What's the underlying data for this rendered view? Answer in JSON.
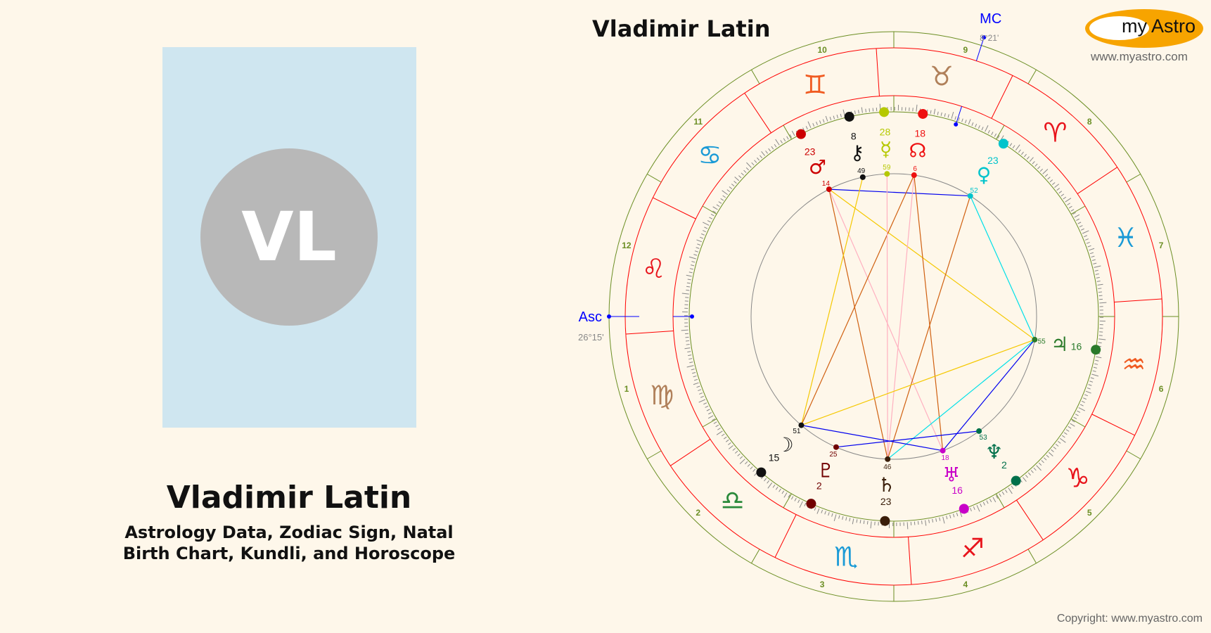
{
  "profile": {
    "initials": "VL",
    "name": "Vladimir Latin",
    "subtitle_line1": "Astrology Data, Zodiac Sign, Natal",
    "subtitle_line2": "Birth Chart, Kundli, and Horoscope"
  },
  "chart": {
    "title": "Vladimir Latin",
    "asc": {
      "label": "Asc",
      "position": "26°15'",
      "sign": "Leo",
      "color": "#0000ff"
    },
    "mc": {
      "label": "MC",
      "position": "8°21'",
      "sign": "Taurus",
      "color": "#0000ff"
    },
    "house_numbers": [
      "1",
      "2",
      "3",
      "4",
      "5",
      "6",
      "7",
      "8",
      "9",
      "10",
      "11",
      "12"
    ],
    "signs": [
      {
        "name": "Aries",
        "glyph": "♈︎",
        "color": "#e8141c"
      },
      {
        "name": "Taurus",
        "glyph": "♉︎",
        "color": "#b0805a"
      },
      {
        "name": "Gemini",
        "glyph": "♊︎",
        "color": "#f05a20"
      },
      {
        "name": "Cancer",
        "glyph": "♋︎",
        "color": "#1a9ad6"
      },
      {
        "name": "Leo",
        "glyph": "♌︎",
        "color": "#e8141c"
      },
      {
        "name": "Virgo",
        "glyph": "♍︎",
        "color": "#b0805a"
      },
      {
        "name": "Libra",
        "glyph": "♎︎",
        "color": "#2a8a3a"
      },
      {
        "name": "Scorpio",
        "glyph": "♏︎",
        "color": "#1a9ad6"
      },
      {
        "name": "Sagittarius",
        "glyph": "♐︎",
        "color": "#e8141c"
      },
      {
        "name": "Capricorn",
        "glyph": "♑︎",
        "color": "#e8141c"
      },
      {
        "name": "Aquarius",
        "glyph": "♒︎",
        "color": "#f05a20"
      },
      {
        "name": "Pisces",
        "glyph": "♓︎",
        "color": "#1a9ad6"
      }
    ],
    "planets": [
      {
        "name": "Mars",
        "glyph": "♂︎",
        "sign": "Gemini",
        "deg": "23",
        "min": "14",
        "color": "#cc0000"
      },
      {
        "name": "Chiron",
        "glyph": "⚷",
        "sign": "Gemini",
        "deg": "8",
        "min": "49",
        "color": "#111111"
      },
      {
        "name": "Mercury",
        "glyph": "☿︎",
        "sign": "Taurus",
        "deg": "28",
        "min": "59",
        "color": "#b5c800"
      },
      {
        "name": "North Node",
        "glyph": "☊",
        "sign": "Taurus",
        "deg": "18",
        "min": "6",
        "color": "#ee1111"
      },
      {
        "name": "Venus",
        "glyph": "♀︎",
        "sign": "Aries",
        "deg": "23",
        "min": "52",
        "color": "#00c4cc"
      },
      {
        "name": "Jupiter",
        "glyph": "♃︎",
        "sign": "Aquarius",
        "deg": "16",
        "min": "55",
        "color": "#2a7a2a"
      },
      {
        "name": "Neptune",
        "glyph": "♆︎",
        "sign": "Capricorn",
        "deg": "2",
        "min": "53",
        "color": "#00704a"
      },
      {
        "name": "Uranus",
        "glyph": "♅︎",
        "sign": "Sagittarius",
        "deg": "16",
        "min": "18",
        "color": "#c800c8"
      },
      {
        "name": "Saturn",
        "glyph": "♄︎",
        "sign": "Scorpio",
        "deg": "23",
        "min": "46",
        "color": "#3a1e0a"
      },
      {
        "name": "Pluto",
        "glyph": "♇︎",
        "sign": "Scorpio",
        "deg": "2",
        "min": "25",
        "color": "#700000"
      },
      {
        "name": "Moon",
        "glyph": "☽︎",
        "sign": "Libra",
        "deg": "15",
        "min": "51",
        "color": "#111111"
      }
    ],
    "aspect_colors": {
      "trine": "#f5c800",
      "sextile": "#0000ee",
      "square": "#00e0e8",
      "quincunx": "#d06010",
      "opposition": "#ffb0c0"
    },
    "aspects": [
      {
        "a": "Mars",
        "b": "Venus",
        "type": "sextile"
      },
      {
        "a": "Mars",
        "b": "Jupiter",
        "type": "trine"
      },
      {
        "a": "Mars",
        "b": "Saturn",
        "type": "quincunx"
      },
      {
        "a": "Mars",
        "b": "Uranus",
        "type": "opposition"
      },
      {
        "a": "Chiron",
        "b": "Moon",
        "type": "trine"
      },
      {
        "a": "North Node",
        "b": "Saturn",
        "type": "opposition"
      },
      {
        "a": "North Node",
        "b": "Moon",
        "type": "quincunx"
      },
      {
        "a": "North Node",
        "b": "Uranus",
        "type": "quincunx"
      },
      {
        "a": "Mercury",
        "b": "Saturn",
        "type": "opposition"
      },
      {
        "a": "Venus",
        "b": "Jupiter",
        "type": "square"
      },
      {
        "a": "Venus",
        "b": "Saturn",
        "type": "quincunx"
      },
      {
        "a": "Jupiter",
        "b": "Moon",
        "type": "trine"
      },
      {
        "a": "Jupiter",
        "b": "Saturn",
        "type": "square"
      },
      {
        "a": "Jupiter",
        "b": "Uranus",
        "type": "sextile"
      },
      {
        "a": "Moon",
        "b": "Uranus",
        "type": "sextile"
      },
      {
        "a": "Pluto",
        "b": "Neptune",
        "type": "sextile"
      }
    ]
  },
  "logo": {
    "text": "my Astro",
    "url": "www.myastro.com"
  },
  "footer": {
    "copyright": "Copyright: www.myastro.com"
  }
}
